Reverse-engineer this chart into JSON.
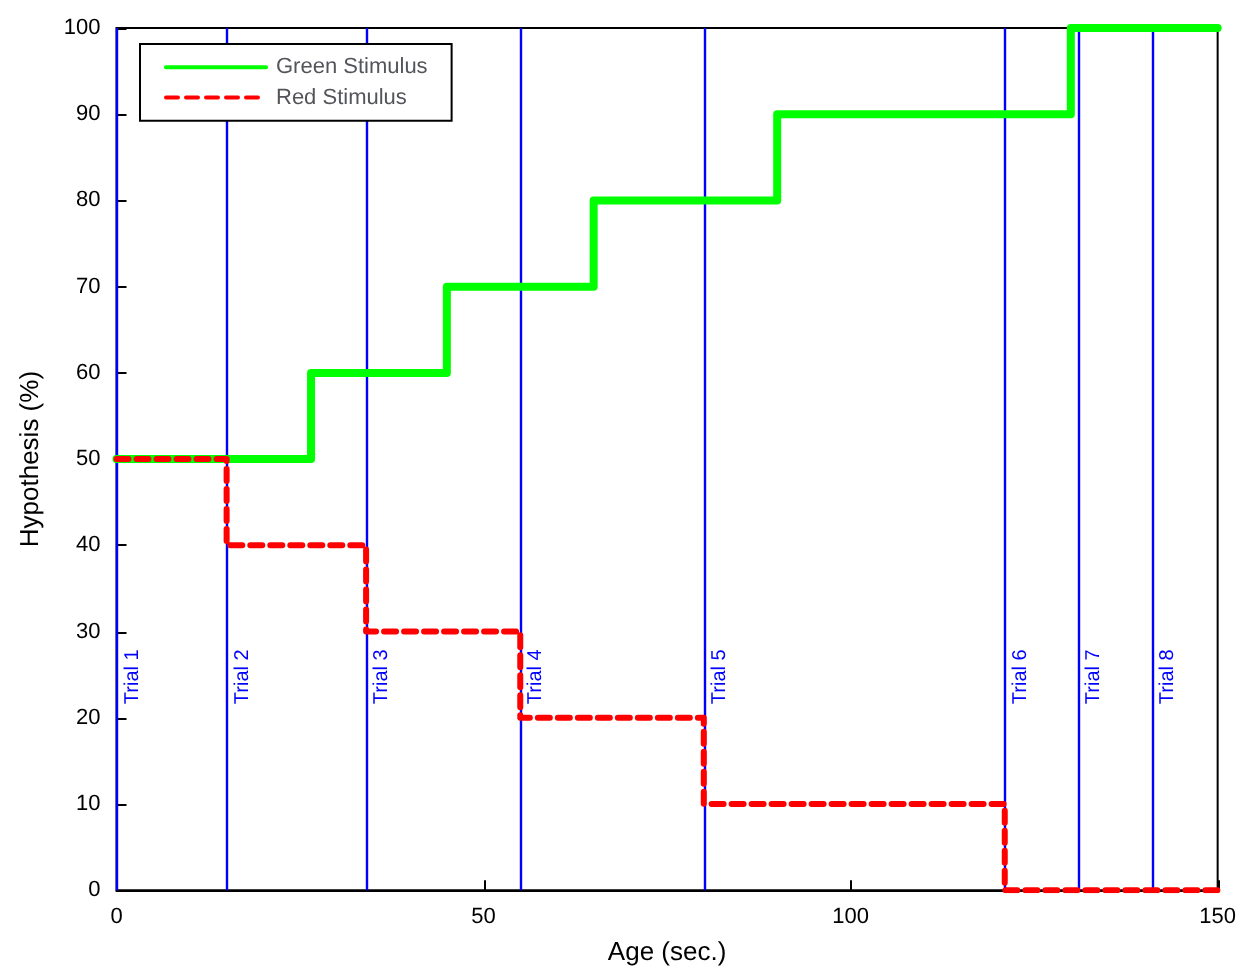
{
  "chart_data": {
    "type": "step",
    "xlabel": "Age (sec.)",
    "ylabel": "Hypothesis (%)",
    "xlim": [
      0,
      150
    ],
    "xticks": [
      0,
      50,
      100,
      150
    ],
    "ylim": [
      0,
      100
    ],
    "yticks": [
      0,
      10,
      20,
      30,
      40,
      50,
      60,
      70,
      80,
      90,
      100
    ],
    "grid": false,
    "legend": "top left",
    "series": [
      {
        "name": "Green Stimulus",
        "color": "#00ff00",
        "line_style": "solid",
        "x": [
          0,
          26.5,
          45,
          65,
          90,
          130,
          150
        ],
        "values": [
          50,
          60,
          70,
          80,
          90,
          100,
          100
        ]
      },
      {
        "name": "Red Stimulus",
        "color": "#ff0000",
        "line_style": "dashed",
        "x": [
          0,
          15,
          34,
          55,
          80,
          121,
          150
        ],
        "values": [
          50,
          40,
          30,
          20,
          10,
          0,
          0
        ]
      }
    ],
    "ref_lines": [
      {
        "axis": "x",
        "value": 0,
        "label": "Trial 1",
        "color": "#0000ff"
      },
      {
        "axis": "x",
        "value": 15,
        "label": "Trial 2",
        "color": "#0000ff"
      },
      {
        "axis": "x",
        "value": 34,
        "label": "Trial 3",
        "color": "#0000ff"
      },
      {
        "axis": "x",
        "value": 55,
        "label": "Trial 4",
        "color": "#0000ff"
      },
      {
        "axis": "x",
        "value": 80,
        "label": "Trial 5",
        "color": "#0000ff"
      },
      {
        "axis": "x",
        "value": 121,
        "label": "Trial 6",
        "color": "#0000ff"
      },
      {
        "axis": "x",
        "value": 131,
        "label": "Trial 7",
        "color": "#0000ff"
      },
      {
        "axis": "x",
        "value": 141,
        "label": "Trial 8",
        "color": "#0000ff"
      }
    ]
  }
}
